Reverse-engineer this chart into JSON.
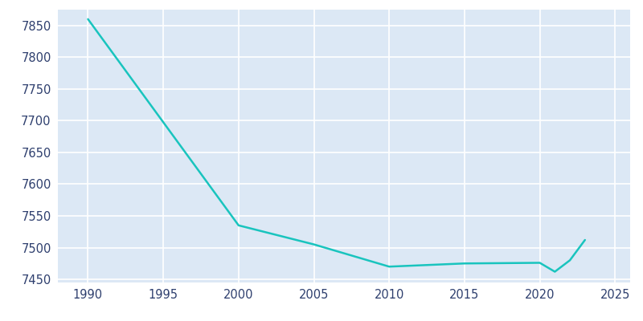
{
  "years": [
    1990,
    2000,
    2005,
    2010,
    2015,
    2020,
    2021,
    2022,
    2023
  ],
  "population": [
    7860,
    7535,
    7505,
    7470,
    7475,
    7476,
    7462,
    7480,
    7512
  ],
  "line_color": "#19c4be",
  "plot_bg_color": "#dce8f5",
  "fig_bg_color": "#ffffff",
  "grid_color": "#ffffff",
  "text_color": "#2e3f6e",
  "xlim": [
    1988,
    2026
  ],
  "ylim": [
    7445,
    7875
  ],
  "xticks": [
    1990,
    1995,
    2000,
    2005,
    2010,
    2015,
    2020,
    2025
  ],
  "yticks": [
    7450,
    7500,
    7550,
    7600,
    7650,
    7700,
    7750,
    7800,
    7850
  ],
  "line_width": 1.8,
  "figsize": [
    8.0,
    4.0
  ],
  "dpi": 100
}
